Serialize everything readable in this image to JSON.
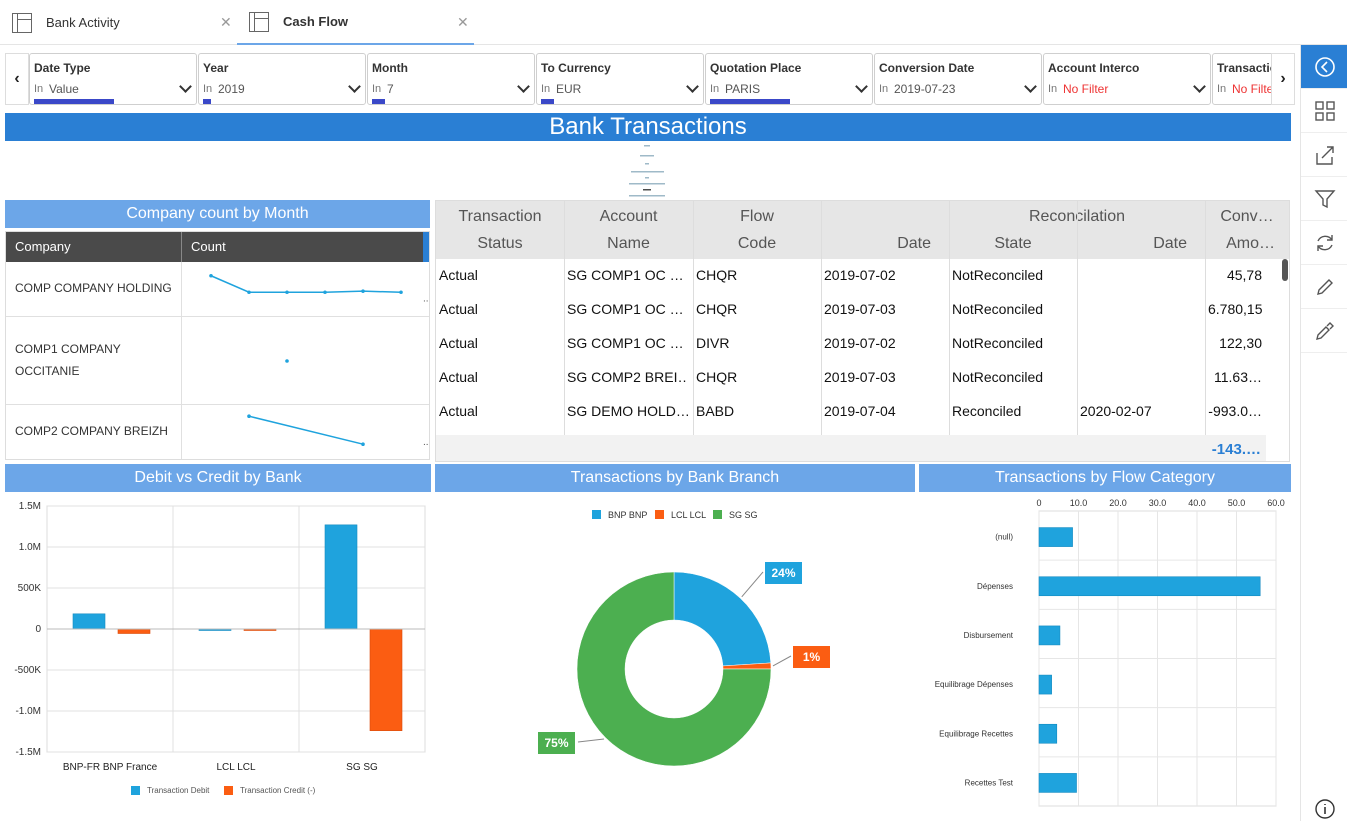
{
  "tabs": [
    {
      "label": "Bank Activity"
    },
    {
      "label": "Cash Flow"
    }
  ],
  "filters": [
    {
      "label": "Date Type",
      "op": "In",
      "value": "Value",
      "bar": 0.5
    },
    {
      "label": "Year",
      "op": "In",
      "value": "2019",
      "bar": 0.05
    },
    {
      "label": "Month",
      "op": "In",
      "value": "7",
      "bar": 0.08
    },
    {
      "label": "To Currency",
      "op": "In",
      "value": "EUR",
      "bar": 0.08
    },
    {
      "label": "Quotation Place",
      "op": "In",
      "value": "PARIS",
      "bar": 0.5
    },
    {
      "label": "Conversion Date",
      "op": "In",
      "value": "2019-07-23",
      "bar": 0
    },
    {
      "label": "Account Interco",
      "op": "In",
      "value": "No Filter",
      "bar": 0
    },
    {
      "label": "Transactio",
      "op": "In",
      "value": "No Filter",
      "bar": 0
    }
  ],
  "banner": "Bank Transactions",
  "company_panel": {
    "title": "Company count by Month",
    "col_company": "Company",
    "col_count": "Count",
    "rows": [
      {
        "name": "COMP COMPANY HOLDING",
        "trend": [
          0.75,
          0.45,
          0.45,
          0.45,
          0.47,
          0.45
        ]
      },
      {
        "name": "COMP1 COMPANY OCCITANIE",
        "trend": [
          null,
          null,
          0.5,
          null,
          null,
          null
        ]
      },
      {
        "name": "COMP2 COMPANY BREIZH",
        "trend": [
          null,
          0.8,
          null,
          null,
          0.3,
          null
        ]
      }
    ]
  },
  "transactions": {
    "headers_top": [
      "Transaction",
      "Account",
      "Flow",
      "",
      "Reconcilation",
      "Conv…"
    ],
    "headers_bottom": [
      "Status",
      "Name",
      "Code",
      "Date",
      "State",
      "Date",
      "Amo…"
    ],
    "rows": [
      [
        "Actual",
        "SG COMP1 OC …",
        "CHQR",
        "2019-07-02",
        "NotReconciled",
        "",
        "45,78"
      ],
      [
        "Actual",
        "SG COMP1 OC …",
        "CHQR",
        "2019-07-03",
        "NotReconciled",
        "",
        "6.780,15"
      ],
      [
        "Actual",
        "SG COMP1 OC …",
        "DIVR",
        "2019-07-02",
        "NotReconciled",
        "",
        "122,30"
      ],
      [
        "Actual",
        "SG COMP2 BREI…",
        "CHQR",
        "2019-07-03",
        "NotReconciled",
        "",
        "11.63…"
      ],
      [
        "Actual",
        "SG DEMO HOLD…",
        "BABD",
        "2019-07-04",
        "Reconciled",
        "2020-02-07",
        "-993.0…"
      ]
    ],
    "total": "-143.…"
  },
  "colors": {
    "accent": "#2a7fd4",
    "panel_title": "#6ca6e8",
    "blue": "#1fa3dd",
    "orange": "#fb5d12",
    "green": "#4caf50"
  },
  "chart_data": [
    {
      "type": "bar",
      "title": "Debit vs Credit by Bank",
      "categories": [
        "BNP-FR BNP France",
        "LCL LCL",
        "SG SG"
      ],
      "series": [
        {
          "name": "Transaction Debit",
          "values": [
            185000,
            0,
            1270000
          ]
        },
        {
          "name": "Transaction Credit (-)",
          "values": [
            -55000,
            -10000,
            -1240000
          ]
        }
      ],
      "ylim": [
        -1500000,
        1500000
      ],
      "yticks": [
        "1.5M",
        "1.0M",
        "500K",
        "0",
        "-500K",
        "-1.0M",
        "-1.5M"
      ],
      "legend": "bottom"
    },
    {
      "type": "pie",
      "title": "Transactions by Bank Branch",
      "labels": [
        "BNP BNP",
        "LCL LCL",
        "SG SG"
      ],
      "values": [
        24,
        1,
        75
      ],
      "value_labels": [
        "24%",
        "1%",
        "75%"
      ],
      "legend": "top"
    },
    {
      "type": "bar",
      "title": "Transactions by Flow Category",
      "orientation": "horizontal",
      "categories": [
        "(null)",
        "Dépenses",
        "Disbursement",
        "Equilibrage Dépenses",
        "Equilibrage Recettes",
        "Recettes Test"
      ],
      "values": [
        8.5,
        56,
        5.3,
        3.2,
        4.5,
        9.5
      ],
      "xlim": [
        0,
        60
      ],
      "xticks": [
        "0",
        "10.0",
        "20.0",
        "30.0",
        "40.0",
        "50.0",
        "60.0"
      ]
    }
  ]
}
